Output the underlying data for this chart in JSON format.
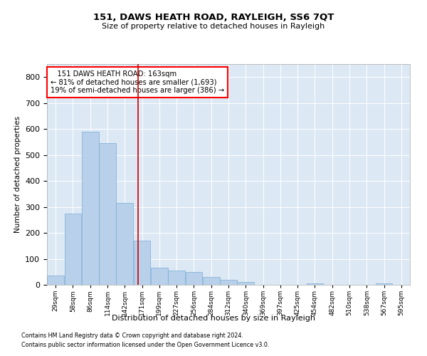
{
  "title": "151, DAWS HEATH ROAD, RAYLEIGH, SS6 7QT",
  "subtitle": "Size of property relative to detached houses in Rayleigh",
  "xlabel": "Distribution of detached houses by size in Rayleigh",
  "ylabel": "Number of detached properties",
  "footnote1": "Contains HM Land Registry data © Crown copyright and database right 2024.",
  "footnote2": "Contains public sector information licensed under the Open Government Licence v3.0.",
  "annotation_line1": "   151 DAWS HEATH ROAD: 163sqm",
  "annotation_line2": "← 81% of detached houses are smaller (1,693)",
  "annotation_line3": "19% of semi-detached houses are larger (386) →",
  "bar_color": "#b8d0ea",
  "bar_edge_color": "#7aacd4",
  "vline_color": "#cc0000",
  "vline_x": 163,
  "background_color": "#dce9f5",
  "ylim": [
    0,
    850
  ],
  "yticks": [
    0,
    100,
    200,
    300,
    400,
    500,
    600,
    700,
    800
  ],
  "bin_left_edges": [
    15,
    43,
    71,
    99,
    127,
    155,
    183,
    211,
    239,
    267,
    295,
    323,
    351,
    379,
    407,
    435,
    463,
    491,
    519,
    547,
    575
  ],
  "bin_width": 28,
  "tick_labels": [
    "29sqm",
    "58sqm",
    "86sqm",
    "114sqm",
    "142sqm",
    "171sqm",
    "199sqm",
    "227sqm",
    "256sqm",
    "284sqm",
    "312sqm",
    "340sqm",
    "369sqm",
    "397sqm",
    "425sqm",
    "454sqm",
    "482sqm",
    "510sqm",
    "538sqm",
    "567sqm",
    "595sqm"
  ],
  "bar_heights": [
    35,
    275,
    590,
    545,
    315,
    170,
    65,
    55,
    50,
    30,
    18,
    10,
    0,
    0,
    0,
    5,
    0,
    0,
    0,
    5,
    0
  ]
}
